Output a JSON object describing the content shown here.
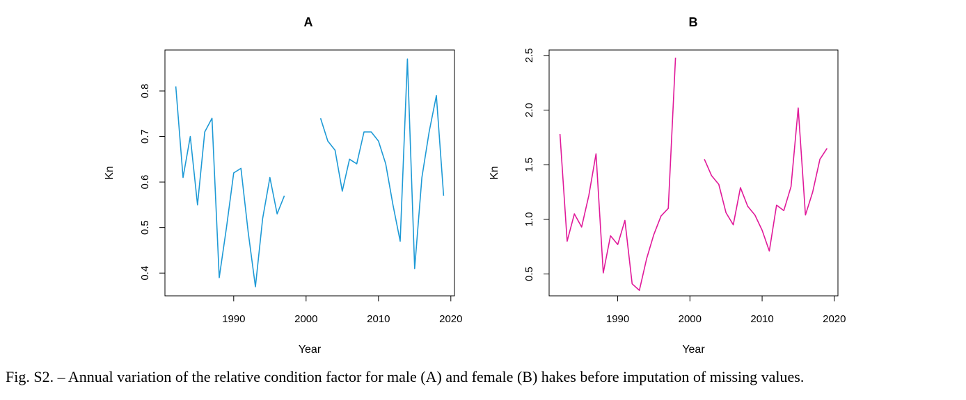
{
  "caption": "Fig. S2. – Annual variation of the relative condition factor for male (A) and female (B) hakes before imputation of missing values.",
  "chart_data": [
    {
      "type": "line",
      "title": "A",
      "xlabel": "Year",
      "ylabel": "Kn",
      "xlim": [
        1980.5,
        2020.5
      ],
      "ylim": [
        0.35,
        0.89
      ],
      "xticks": [
        1990,
        2000,
        2010,
        2020
      ],
      "yticks": [
        0.4,
        0.5,
        0.6,
        0.7,
        0.8
      ],
      "grid": false,
      "color": "#1E9AD6",
      "x": [
        1982,
        1983,
        1984,
        1985,
        1986,
        1987,
        1988,
        1989,
        1990,
        1991,
        1992,
        1993,
        1994,
        1995,
        1996,
        1997,
        1998,
        1999,
        2000,
        2001,
        2002,
        2003,
        2004,
        2005,
        2006,
        2007,
        2008,
        2009,
        2010,
        2011,
        2012,
        2013,
        2014,
        2015,
        2016,
        2017,
        2018,
        2019
      ],
      "y": [
        0.81,
        0.61,
        0.7,
        0.55,
        0.71,
        0.74,
        0.39,
        0.5,
        0.62,
        0.63,
        0.49,
        0.37,
        0.52,
        0.61,
        0.53,
        0.57,
        null,
        null,
        null,
        null,
        0.74,
        0.69,
        0.67,
        0.58,
        0.65,
        0.64,
        0.71,
        0.71,
        0.69,
        0.64,
        0.55,
        0.47,
        0.87,
        0.41,
        0.61,
        0.71,
        0.79,
        0.57
      ]
    },
    {
      "type": "line",
      "title": "B",
      "xlabel": "Year",
      "ylabel": "Kn",
      "xlim": [
        1980.5,
        2020.5
      ],
      "ylim": [
        0.3,
        2.55
      ],
      "xticks": [
        1990,
        2000,
        2010,
        2020
      ],
      "yticks": [
        0.5,
        1.0,
        1.5,
        2.0,
        2.5
      ],
      "grid": false,
      "color": "#E01A9A",
      "x": [
        1982,
        1983,
        1984,
        1985,
        1986,
        1987,
        1988,
        1989,
        1990,
        1991,
        1992,
        1993,
        1994,
        1995,
        1996,
        1997,
        1998,
        1999,
        2000,
        2001,
        2002,
        2003,
        2004,
        2005,
        2006,
        2007,
        2008,
        2009,
        2010,
        2011,
        2012,
        2013,
        2014,
        2015,
        2016,
        2017,
        2018,
        2019
      ],
      "y": [
        1.78,
        0.8,
        1.05,
        0.93,
        1.22,
        1.6,
        0.51,
        0.85,
        0.77,
        0.99,
        0.41,
        0.35,
        0.64,
        0.86,
        1.03,
        1.1,
        2.48,
        null,
        null,
        null,
        1.55,
        1.4,
        1.32,
        1.06,
        0.95,
        1.29,
        1.12,
        1.04,
        0.9,
        0.71,
        1.13,
        1.08,
        1.3,
        2.02,
        1.04,
        1.25,
        1.55,
        1.65
      ]
    }
  ]
}
